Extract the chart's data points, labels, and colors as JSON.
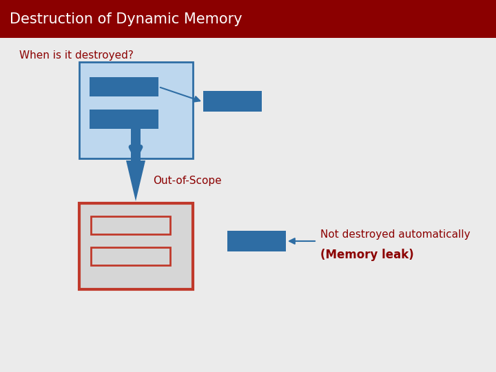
{
  "title": "Destruction of Dynamic Memory",
  "title_bg": "#8B0000",
  "title_color": "#FFFFFF",
  "subtitle": "When is it destroyed?",
  "subtitle_color": "#8B0000",
  "bg_color": "#EBEBEB",
  "blue_dark": "#2E6DA4",
  "blue_light": "#BDD7EE",
  "red_dark": "#C0392B",
  "gray_light": "#D6D6D6",
  "label_out_of_scope": "Out-of-Scope",
  "label_not_destroyed": "Not destroyed automatically",
  "label_memory_leak": "(Memory leak)",
  "text_color": "#8B0000",
  "title_fontsize": 15,
  "subtitle_fontsize": 11,
  "label_fontsize": 11
}
